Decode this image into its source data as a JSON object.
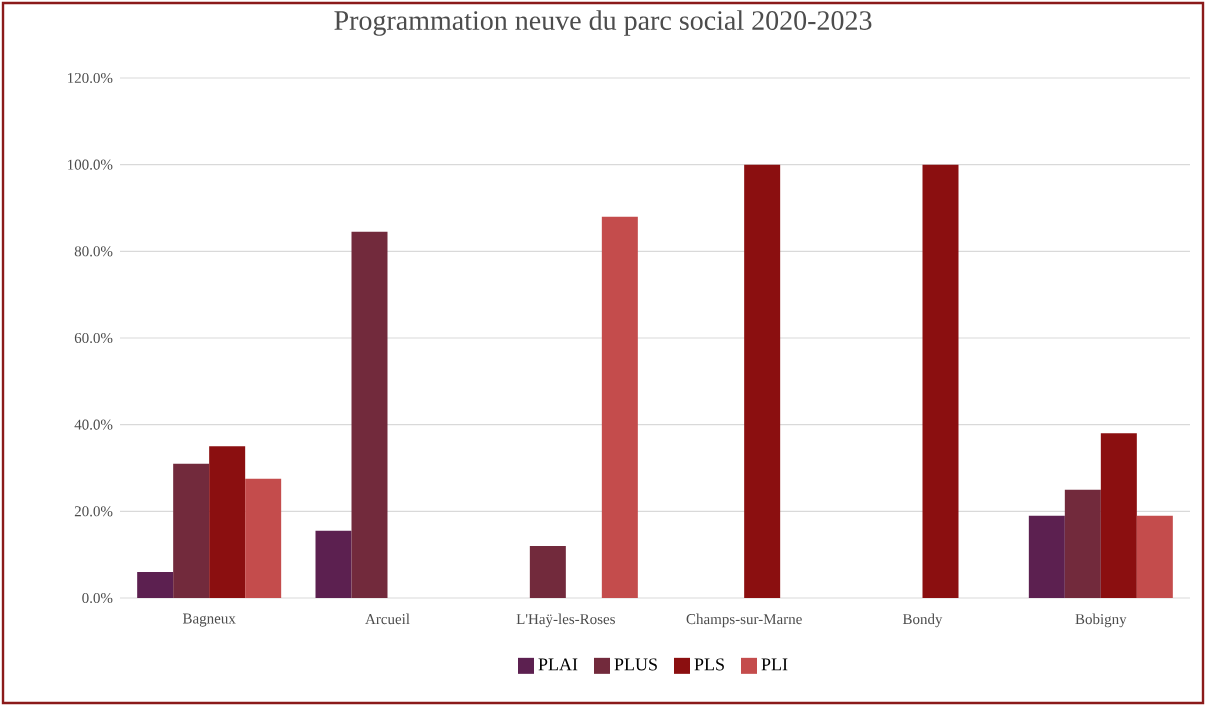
{
  "chart_data": {
    "type": "bar",
    "title": "Programmation neuve du parc social 2020-2023",
    "categories": [
      "Bagneux",
      "Arcueil",
      "L'Haÿ-les-Roses",
      "Champs-sur-Marne",
      "Bondy",
      "Bobigny"
    ],
    "series": [
      {
        "name": "PLAI",
        "color": "#5c2050",
        "values": [
          6,
          15.5,
          0,
          0,
          0,
          19
        ]
      },
      {
        "name": "PLUS",
        "color": "#722a3c",
        "values": [
          31,
          84.5,
          12,
          0,
          0,
          25
        ]
      },
      {
        "name": "PLS",
        "color": "#8b0f10",
        "values": [
          35,
          0,
          0,
          100,
          100,
          38
        ]
      },
      {
        "name": "PLI",
        "color": "#c44c4c",
        "values": [
          27.5,
          0,
          88,
          0,
          0,
          19
        ]
      }
    ],
    "ylim": [
      0,
      120
    ],
    "yticks": [
      {
        "value": 0,
        "label": "0.0%"
      },
      {
        "value": 20,
        "label": "20.0%"
      },
      {
        "value": 40,
        "label": "40.0%"
      },
      {
        "value": 60,
        "label": "60.0%"
      },
      {
        "value": 80,
        "label": "80.0%"
      },
      {
        "value": 100,
        "label": "100.0%"
      },
      {
        "value": 120,
        "label": "120.0%"
      }
    ],
    "grid": "y",
    "legend": "bottom"
  }
}
